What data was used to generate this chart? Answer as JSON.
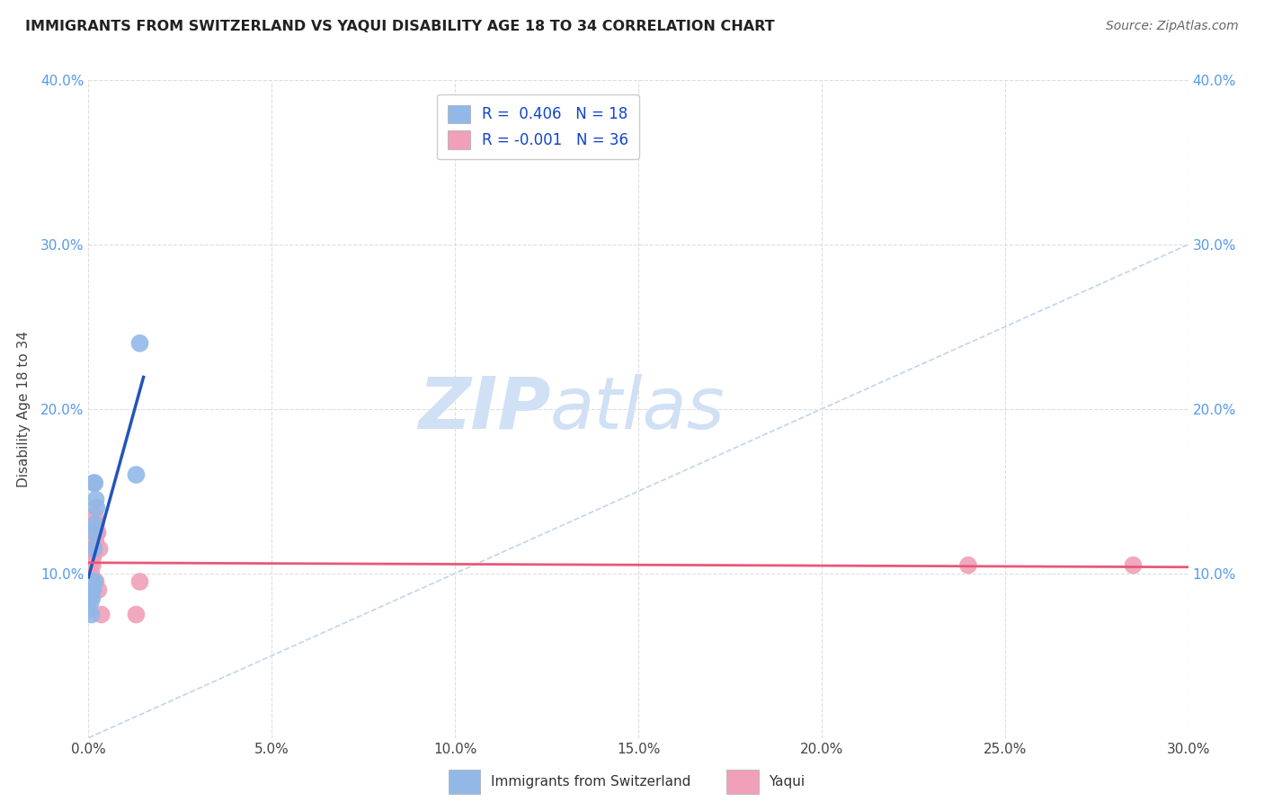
{
  "title": "IMMIGRANTS FROM SWITZERLAND VS YAQUI DISABILITY AGE 18 TO 34 CORRELATION CHART",
  "source": "Source: ZipAtlas.com",
  "ylabel": "Disability Age 18 to 34",
  "xlim": [
    0.0,
    0.3
  ],
  "ylim": [
    0.0,
    0.4
  ],
  "xticks": [
    0.0,
    0.05,
    0.1,
    0.15,
    0.2,
    0.25,
    0.3
  ],
  "yticks": [
    0.0,
    0.1,
    0.2,
    0.3,
    0.4
  ],
  "xticklabels": [
    "0.0%",
    "5.0%",
    "10.0%",
    "15.0%",
    "20.0%",
    "25.0%",
    "30.0%"
  ],
  "yticklabels_left": [
    "",
    "10.0%",
    "20.0%",
    "30.0%",
    "40.0%"
  ],
  "yticklabels_right": [
    "",
    "10.0%",
    "20.0%",
    "30.0%",
    "40.0%"
  ],
  "swiss_x": [
    0.0,
    0.0005,
    0.0008,
    0.001,
    0.001,
    0.0012,
    0.0013,
    0.0014,
    0.0015,
    0.0015,
    0.0016,
    0.0016,
    0.0017,
    0.0018,
    0.002,
    0.0022,
    0.013,
    0.014
  ],
  "swiss_y": [
    0.078,
    0.082,
    0.075,
    0.085,
    0.09,
    0.095,
    0.09,
    0.155,
    0.095,
    0.115,
    0.095,
    0.125,
    0.155,
    0.13,
    0.145,
    0.14,
    0.16,
    0.24
  ],
  "yaqui_x": [
    0.0,
    0.0002,
    0.0003,
    0.0004,
    0.0005,
    0.0006,
    0.0006,
    0.0007,
    0.0008,
    0.0008,
    0.0009,
    0.0009,
    0.001,
    0.001,
    0.0011,
    0.0011,
    0.0012,
    0.0013,
    0.0014,
    0.0015,
    0.0015,
    0.0016,
    0.0017,
    0.0018,
    0.0019,
    0.002,
    0.0021,
    0.0022,
    0.0025,
    0.0027,
    0.003,
    0.0035,
    0.013,
    0.014,
    0.24,
    0.285
  ],
  "yaqui_y": [
    0.085,
    0.09,
    0.1,
    0.095,
    0.105,
    0.1,
    0.115,
    0.1,
    0.095,
    0.11,
    0.095,
    0.115,
    0.11,
    0.115,
    0.095,
    0.105,
    0.11,
    0.125,
    0.095,
    0.115,
    0.115,
    0.125,
    0.125,
    0.135,
    0.12,
    0.095,
    0.13,
    0.125,
    0.125,
    0.09,
    0.115,
    0.075,
    0.075,
    0.095,
    0.105,
    0.105
  ],
  "swiss_color": "#92b8e8",
  "yaqui_color": "#f0a0b8",
  "swiss_line_color": "#2255bb",
  "yaqui_line_color": "#e85878",
  "diagonal_color": "#c0d4ee",
  "background_color": "#ffffff",
  "grid_color": "#dddddd",
  "watermark_zip": "ZIP",
  "watermark_atlas": "atlas",
  "watermark_color": "#d0e0f5",
  "r_swiss": 0.406,
  "n_swiss": 18,
  "r_yaqui": -0.001,
  "n_yaqui": 36
}
